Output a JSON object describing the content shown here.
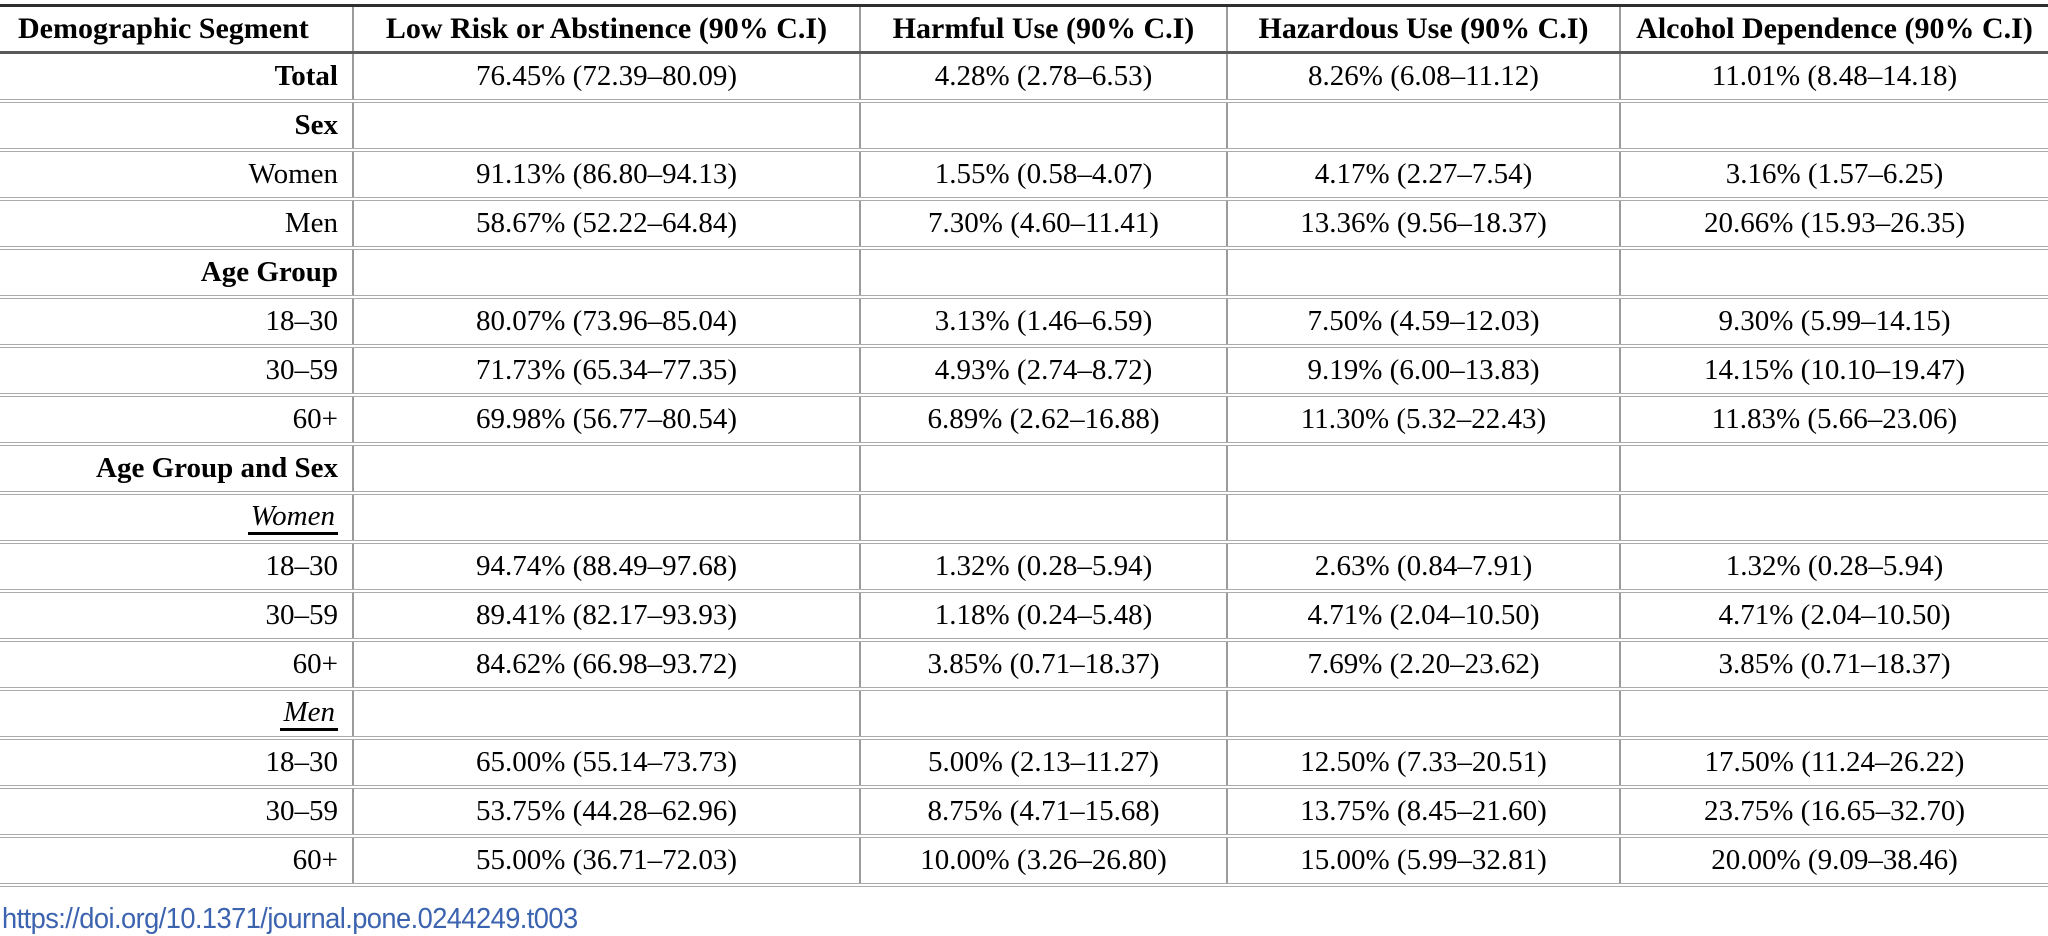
{
  "table": {
    "columns": [
      "Demographic Segment",
      "Low Risk or Abstinence (90% C.I)",
      "Harmful Use (90% C.I)",
      "Hazardous Use (90% C.I)",
      "Alcohol Dependence (90% C.I)"
    ],
    "rows": [
      {
        "label": "Total",
        "style": "bold",
        "values": [
          "76.45% (72.39–80.09)",
          "4.28% (2.78–6.53)",
          "8.26% (6.08–11.12)",
          "11.01% (8.48–14.18)"
        ]
      },
      {
        "label": "Sex",
        "style": "bold",
        "values": [
          "",
          "",
          "",
          ""
        ]
      },
      {
        "label": "Women",
        "style": "plain",
        "values": [
          "91.13% (86.80–94.13)",
          "1.55% (0.58–4.07)",
          "4.17% (2.27–7.54)",
          "3.16% (1.57–6.25)"
        ]
      },
      {
        "label": "Men",
        "style": "plain",
        "values": [
          "58.67% (52.22–64.84)",
          "7.30% (4.60–11.41)",
          "13.36% (9.56–18.37)",
          "20.66% (15.93–26.35)"
        ]
      },
      {
        "label": "Age Group",
        "style": "bold",
        "values": [
          "",
          "",
          "",
          ""
        ]
      },
      {
        "label": "18–30",
        "style": "plain",
        "values": [
          "80.07% (73.96–85.04)",
          "3.13% (1.46–6.59)",
          "7.50% (4.59–12.03)",
          "9.30% (5.99–14.15)"
        ]
      },
      {
        "label": "30–59",
        "style": "plain",
        "values": [
          "71.73% (65.34–77.35)",
          "4.93% (2.74–8.72)",
          "9.19% (6.00–13.83)",
          "14.15% (10.10–19.47)"
        ]
      },
      {
        "label": "60+",
        "style": "plain",
        "values": [
          "69.98% (56.77–80.54)",
          "6.89% (2.62–16.88)",
          "11.30% (5.32–22.43)",
          "11.83% (5.66–23.06)"
        ]
      },
      {
        "label": "Age Group and Sex",
        "style": "bold",
        "values": [
          "",
          "",
          "",
          ""
        ]
      },
      {
        "label": "Women",
        "style": "italic-underline",
        "values": [
          "",
          "",
          "",
          ""
        ]
      },
      {
        "label": "18–30",
        "style": "plain",
        "values": [
          "94.74% (88.49–97.68)",
          "1.32% (0.28–5.94)",
          "2.63% (0.84–7.91)",
          "1.32% (0.28–5.94)"
        ]
      },
      {
        "label": "30–59",
        "style": "plain",
        "values": [
          "89.41% (82.17–93.93)",
          "1.18% (0.24–5.48)",
          "4.71% (2.04–10.50)",
          "4.71% (2.04–10.50)"
        ]
      },
      {
        "label": "60+",
        "style": "plain",
        "values": [
          "84.62% (66.98–93.72)",
          "3.85% (0.71–18.37)",
          "7.69% (2.20–23.62)",
          "3.85% (0.71–18.37)"
        ]
      },
      {
        "label": "Men",
        "style": "italic-underline",
        "values": [
          "",
          "",
          "",
          ""
        ]
      },
      {
        "label": "18–30",
        "style": "plain",
        "values": [
          "65.00% (55.14–73.73)",
          "5.00% (2.13–11.27)",
          "12.50% (7.33–20.51)",
          "17.50% (11.24–26.22)"
        ]
      },
      {
        "label": "30–59",
        "style": "plain",
        "values": [
          "53.75% (44.28–62.96)",
          "8.75% (4.71–15.68)",
          "13.75% (8.45–21.60)",
          "23.75% (16.65–32.70)"
        ]
      },
      {
        "label": "60+",
        "style": "plain",
        "values": [
          "55.00% (36.71–72.03)",
          "10.00% (3.26–26.80)",
          "15.00% (5.99–32.81)",
          "20.00% (9.09–38.46)"
        ]
      }
    ]
  },
  "footer": {
    "doi": "https://doi.org/10.1371/journal.pone.0244249.t003"
  },
  "colors": {
    "link_blue": "#3c63af",
    "rule_gray": "#ababab",
    "rule_dark": "#2e2e2e",
    "text": "#000000"
  }
}
